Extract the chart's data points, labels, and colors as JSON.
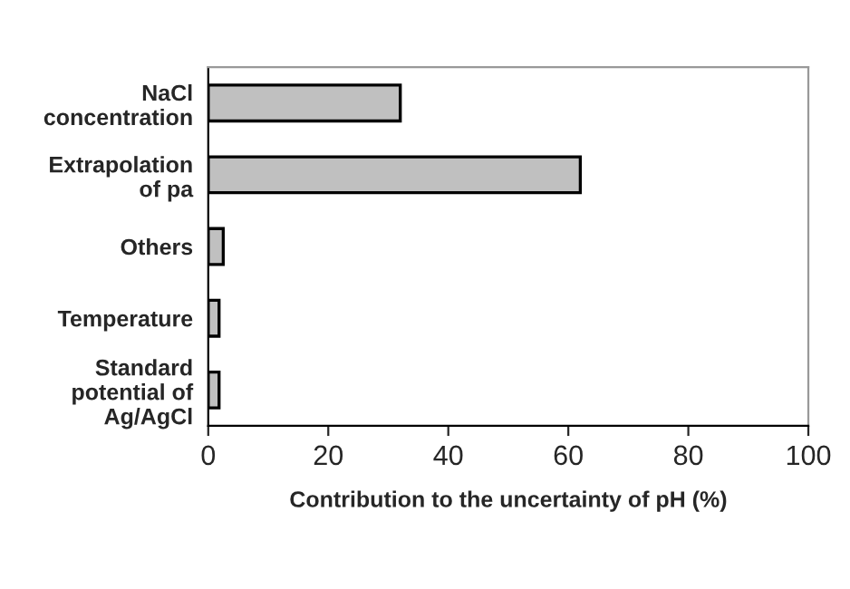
{
  "chart_data": {
    "type": "bar",
    "orientation": "horizontal",
    "xlabel": "Contribution to the uncertainty of pH (%)",
    "categories": [
      "NaCl\nconcentration",
      "Extrapolation\nof pa",
      "Others",
      "Temperature",
      "Standard\npotential of\nAg/AgCl"
    ],
    "values": [
      32,
      62,
      2.5,
      1.8,
      1.8
    ],
    "color": "#c0c0c0",
    "xlim": [
      0,
      100
    ],
    "xticks": [
      0,
      20,
      40,
      60,
      80,
      100
    ],
    "grid": false,
    "legend": false
  }
}
